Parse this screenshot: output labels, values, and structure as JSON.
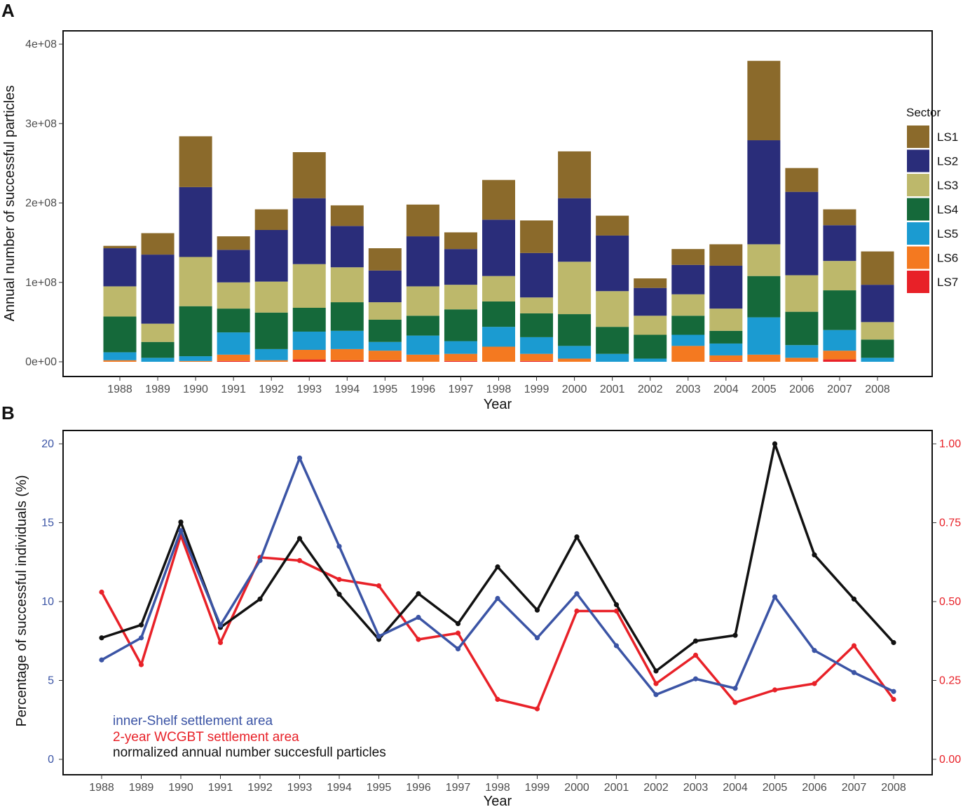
{
  "chart_data": [
    {
      "panel": "A",
      "type": "bar",
      "stacked": true,
      "title": "",
      "xlabel": "Year",
      "ylabel": "Annual number of successful particles",
      "ylim": [
        0,
        420000000
      ],
      "yticks": [
        0,
        100000000,
        200000000,
        300000000,
        400000000
      ],
      "ytick_labels": [
        "0e+00",
        "1e+08",
        "2e+08",
        "3e+08",
        "4e+08"
      ],
      "categories": [
        "1988",
        "1989",
        "1990",
        "1991",
        "1992",
        "1993",
        "1994",
        "1995",
        "1996",
        "1997",
        "1998",
        "1999",
        "2000",
        "2001",
        "2002",
        "2003",
        "2004",
        "2005",
        "2006",
        "2007",
        "2008"
      ],
      "legend_title": "Sector",
      "legend_position": "right",
      "series": [
        {
          "name": "LS7",
          "color": "#e82128",
          "values": [
            0,
            0,
            0,
            1000000,
            0,
            3000000,
            2000000,
            2000000,
            0,
            1000000,
            0,
            1000000,
            0,
            0,
            0,
            0,
            1000000,
            0,
            0,
            3000000,
            0
          ]
        },
        {
          "name": "LS6",
          "color": "#f47920",
          "values": [
            2000000,
            0,
            1000000,
            8000000,
            2000000,
            12000000,
            14000000,
            12000000,
            9000000,
            9000000,
            19000000,
            9000000,
            4000000,
            0,
            0,
            20000000,
            7000000,
            9000000,
            5000000,
            11000000,
            0
          ]
        },
        {
          "name": "LS5",
          "color": "#1b9bd1",
          "values": [
            10000000,
            5000000,
            6000000,
            28000000,
            14000000,
            23000000,
            23000000,
            11000000,
            24000000,
            16000000,
            25000000,
            21000000,
            16000000,
            10000000,
            4000000,
            14000000,
            15000000,
            47000000,
            16000000,
            26000000,
            5000000
          ]
        },
        {
          "name": "LS4",
          "color": "#15693a",
          "values": [
            45000000,
            20000000,
            63000000,
            30000000,
            46000000,
            30000000,
            36000000,
            28000000,
            25000000,
            40000000,
            32000000,
            30000000,
            40000000,
            34000000,
            30000000,
            24000000,
            16000000,
            52000000,
            42000000,
            50000000,
            23000000
          ]
        },
        {
          "name": "LS3",
          "color": "#bdb86b",
          "values": [
            38000000,
            23000000,
            62000000,
            33000000,
            39000000,
            55000000,
            44000000,
            22000000,
            37000000,
            31000000,
            32000000,
            20000000,
            66000000,
            45000000,
            24000000,
            27000000,
            28000000,
            40000000,
            46000000,
            37000000,
            22000000
          ]
        },
        {
          "name": "LS2",
          "color": "#2a2d7a",
          "values": [
            48000000,
            87000000,
            88000000,
            41000000,
            65000000,
            83000000,
            52000000,
            40000000,
            63000000,
            45000000,
            71000000,
            56000000,
            80000000,
            70000000,
            35000000,
            37000000,
            54000000,
            131000000,
            105000000,
            45000000,
            47000000
          ]
        },
        {
          "name": "LS1",
          "color": "#8b6a2b",
          "values": [
            3000000,
            27000000,
            64000000,
            17000000,
            26000000,
            58000000,
            26000000,
            28000000,
            40000000,
            21000000,
            50000000,
            41000000,
            59000000,
            25000000,
            12000000,
            20000000,
            27000000,
            100000000,
            30000000,
            20000000,
            42000000
          ]
        }
      ]
    },
    {
      "panel": "B",
      "type": "line",
      "title": "",
      "xlabel": "Year",
      "ylabel": "Percentage of successful individuals (%)",
      "ylim": [
        0,
        20
      ],
      "yticks": [
        0,
        5,
        10,
        15,
        20
      ],
      "ytick_labels": [
        "0",
        "5",
        "10",
        "15",
        "20"
      ],
      "ylim_right": [
        0,
        1
      ],
      "yticks_right": [
        0,
        0.25,
        0.5,
        0.75,
        1
      ],
      "ytick_labels_right": [
        "0.00",
        "0.25",
        "0.50",
        "0.75",
        "1.00"
      ],
      "categories": [
        "1988",
        "1989",
        "1990",
        "1991",
        "1992",
        "1993",
        "1994",
        "1995",
        "1996",
        "1997",
        "1998",
        "1999",
        "2000",
        "2001",
        "2002",
        "2003",
        "2004",
        "2005",
        "2006",
        "2007",
        "2008"
      ],
      "series": [
        {
          "name": "inner-Shelf settlement area",
          "axis": "left",
          "color": "#3b54a5",
          "values": [
            6.3,
            7.7,
            14.5,
            8.5,
            12.6,
            19.1,
            13.5,
            7.8,
            9.0,
            7.0,
            10.2,
            7.7,
            10.5,
            7.2,
            4.1,
            5.1,
            4.5,
            10.3,
            6.9,
            5.5,
            4.3
          ]
        },
        {
          "name": "2-year WCGBT settlement area",
          "axis": "right",
          "color": "#e82128",
          "values": [
            0.53,
            0.3,
            0.71,
            0.37,
            0.64,
            0.63,
            0.57,
            0.55,
            0.38,
            0.4,
            0.19,
            0.16,
            0.47,
            0.47,
            0.24,
            0.33,
            0.18,
            0.22,
            0.24,
            0.36,
            0.19
          ]
        },
        {
          "name": "normalized annual number succesfull particles",
          "axis": "right",
          "color": "#111111",
          "values": [
            0.385,
            0.426,
            0.752,
            0.418,
            0.508,
            0.7,
            0.523,
            0.38,
            0.525,
            0.43,
            0.61,
            0.473,
            0.705,
            0.49,
            0.28,
            0.375,
            0.393,
            1.0,
            0.648,
            0.508,
            0.37
          ]
        }
      ],
      "legend_position": "bottom-left, in-plot text"
    }
  ]
}
